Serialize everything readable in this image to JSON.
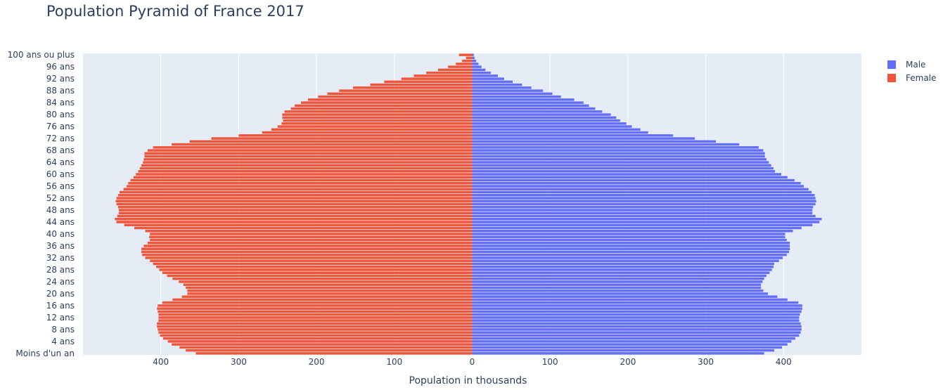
{
  "chart_data": {
    "type": "bar",
    "orientation": "horizontal",
    "title": "Population Pyramid of France 2017",
    "xlabel": "Population in thousands",
    "ylabel": "",
    "xlim": [
      -500,
      500
    ],
    "x_ticks": [
      {
        "value": -400,
        "label": "400"
      },
      {
        "value": -300,
        "label": "300"
      },
      {
        "value": -200,
        "label": "200"
      },
      {
        "value": -100,
        "label": "100"
      },
      {
        "value": 0,
        "label": "0"
      },
      {
        "value": 100,
        "label": "100"
      },
      {
        "value": 200,
        "label": "200"
      },
      {
        "value": 300,
        "label": "300"
      },
      {
        "value": 400,
        "label": "400"
      }
    ],
    "y_tick_labels": [
      "Moins d'un an",
      "4 ans",
      "8 ans",
      "12 ans",
      "16 ans",
      "20 ans",
      "24 ans",
      "28 ans",
      "32 ans",
      "36 ans",
      "40 ans",
      "44 ans",
      "48 ans",
      "52 ans",
      "56 ans",
      "60 ans",
      "64 ans",
      "68 ans",
      "72 ans",
      "76 ans",
      "80 ans",
      "84 ans",
      "88 ans",
      "92 ans",
      "96 ans",
      "100 ans ou plus"
    ],
    "y_tick_indices": [
      0,
      4,
      8,
      12,
      16,
      20,
      24,
      28,
      32,
      36,
      40,
      44,
      48,
      52,
      56,
      60,
      64,
      68,
      72,
      76,
      80,
      84,
      88,
      92,
      96,
      100
    ],
    "grid": true,
    "legend_placement": "top-right",
    "background_color": "#e5ecf6",
    "series": [
      {
        "name": "Male",
        "color": "#636efa",
        "values": [
          375,
          388,
          398,
          405,
          410,
          415,
          420,
          422,
          423,
          423,
          422,
          420,
          420,
          421,
          423,
          424,
          424,
          419,
          405,
          392,
          380,
          374,
          371,
          371,
          373,
          375,
          378,
          382,
          385,
          387,
          388,
          394,
          399,
          404,
          407,
          408,
          408,
          408,
          404,
          402,
          402,
          412,
          423,
          437,
          446,
          449,
          441,
          437,
          437,
          438,
          441,
          442,
          441,
          440,
          436,
          432,
          426,
          422,
          414,
          405,
          397,
          389,
          387,
          384,
          381,
          378,
          376,
          376,
          374,
          368,
          343,
          313,
          286,
          258,
          226,
          216,
          205,
          198,
          190,
          185,
          178,
          167,
          158,
          150,
          143,
          131,
          114,
          103,
          91,
          76,
          64,
          52,
          41,
          33,
          24,
          17,
          12,
          8,
          5,
          3,
          2
        ]
      },
      {
        "name": "Female",
        "color": "#ef553b",
        "values": [
          355,
          368,
          376,
          386,
          391,
          397,
          401,
          403,
          404,
          405,
          405,
          403,
          403,
          403,
          404,
          405,
          404,
          398,
          385,
          373,
          366,
          366,
          368,
          371,
          377,
          385,
          392,
          398,
          402,
          406,
          410,
          414,
          420,
          424,
          425,
          425,
          422,
          417,
          414,
          415,
          414,
          420,
          434,
          447,
          457,
          459,
          456,
          454,
          454,
          455,
          457,
          458,
          457,
          455,
          453,
          448,
          444,
          442,
          439,
          435,
          432,
          429,
          427,
          425,
          423,
          422,
          421,
          421,
          417,
          410,
          386,
          363,
          335,
          300,
          270,
          258,
          250,
          245,
          243,
          244,
          244,
          241,
          233,
          228,
          220,
          211,
          198,
          186,
          171,
          153,
          131,
          113,
          91,
          75,
          59,
          44,
          31,
          21,
          13,
          8,
          17
        ]
      }
    ]
  },
  "legend": {
    "items": [
      {
        "label": "Male",
        "color": "#636efa"
      },
      {
        "label": "Female",
        "color": "#ef553b"
      }
    ]
  }
}
